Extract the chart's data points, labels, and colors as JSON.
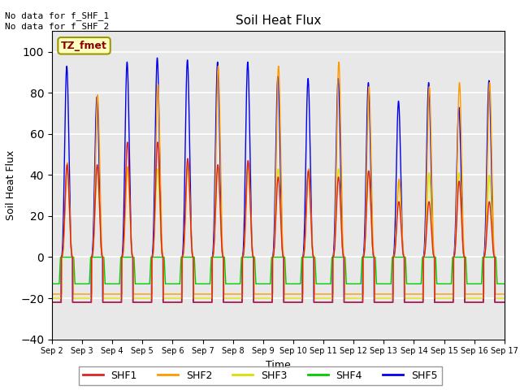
{
  "title": "Soil Heat Flux",
  "ylabel": "Soil Heat Flux",
  "xlabel": "Time",
  "ylim": [
    -40,
    110
  ],
  "yticks": [
    -40,
    -20,
    0,
    20,
    40,
    60,
    80,
    100
  ],
  "annotation_top": "No data for f_SHF_1\nNo data for f_SHF_2",
  "box_label": "TZ_fmet",
  "box_facecolor": "#ffffc0",
  "box_edgecolor": "#999900",
  "box_textcolor": "#8b0000",
  "colors": {
    "SHF1": "#dd2222",
    "SHF2": "#ff9900",
    "SHF3": "#dddd00",
    "SHF4": "#00cc00",
    "SHF5": "#0000ee"
  },
  "n_days": 15,
  "xtick_labels": [
    "Sep 2",
    "Sep 3",
    "Sep 4",
    "Sep 5",
    "Sep 6",
    "Sep 7",
    "Sep 8",
    "Sep 9",
    "Sep 10",
    "Sep 11",
    "Sep 12",
    "Sep 13",
    "Sep 14",
    "Sep 15",
    "Sep 16",
    "Sep 17"
  ],
  "plot_bg_color": "#e8e8e8",
  "grid_color": "white",
  "linewidth": 1.0
}
